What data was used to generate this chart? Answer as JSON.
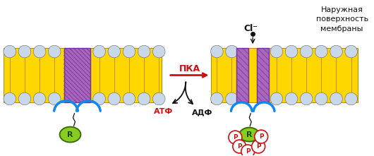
{
  "bg_color": "#ffffff",
  "mem_yellow": "#FFD700",
  "mem_yellow_line": "#B8860B",
  "mem_purple": "#AA66BB",
  "mem_purple_dark": "#7030A0",
  "head_fill": "#C8D8E8",
  "head_edge": "#666666",
  "R_fill": "#88CC22",
  "R_edge": "#336600",
  "P_fill": "#ffffff",
  "P_edge": "#CC1111",
  "blue": "#1188EE",
  "red": "#CC1111",
  "black": "#111111",
  "PKA": "ПКА",
  "ATF": "АТФ",
  "ADF": "АДФ",
  "R_lbl": "R",
  "P_lbl": "P",
  "Cl_lbl": "Cl⁻",
  "outer1": "Наружная",
  "outer2": "поверхность",
  "outer3": "мембраны"
}
